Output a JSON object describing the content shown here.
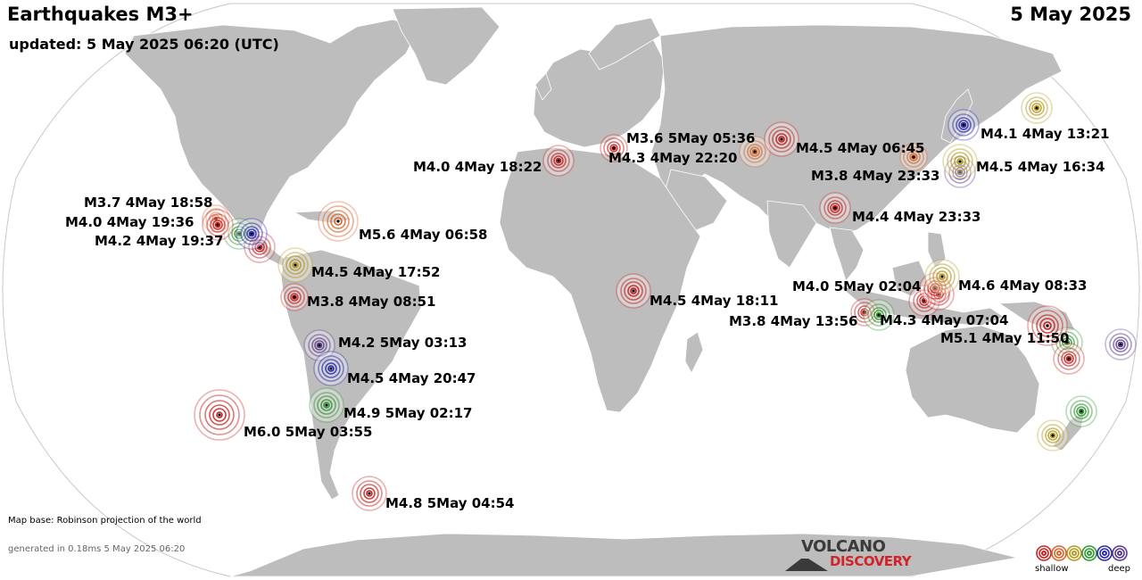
{
  "title": "Earthquakes M3+",
  "date": "5 May 2025",
  "updated": "updated:  5 May 2025 06:20 (UTC)",
  "map_base": "Map base: Robinson projection of the world",
  "generated": "generated in 0.18ms  5 May 2025 06:20",
  "logo": {
    "line1": "VOLCANO",
    "line2": "DISCOVERY"
  },
  "legend": {
    "shallow": "shallow",
    "deep": "deep",
    "colors": [
      "#cc2222",
      "#d9652a",
      "#b59a1e",
      "#2f9a2f",
      "#2a2ab4",
      "#5a3a8c"
    ]
  },
  "depth_colors": {
    "red": "#c81e1e",
    "orange": "#d9652a",
    "olive": "#b59a1e",
    "green": "#2f9a2f",
    "blue": "#2a2ab4",
    "purple": "#5a3a8c"
  },
  "earthquakes": [
    {
      "label": "M3.7  4May 18:58",
      "mag": 3.7,
      "color": "orange"
    },
    {
      "label": "M4.0  4May 19:36",
      "mag": 4.0,
      "color": "red"
    },
    {
      "label": "M4.2  4May 19:37",
      "mag": 4.2,
      "color": "blue"
    },
    {
      "label": "M5.6  4May 06:58",
      "mag": 5.6,
      "color": "orange"
    },
    {
      "label": "M4.5  4May 17:52",
      "mag": 4.5,
      "color": "olive"
    },
    {
      "label": "M3.8  4May 08:51",
      "mag": 3.8,
      "color": "red"
    },
    {
      "label": "M4.2  5May 03:13",
      "mag": 4.2,
      "color": "purple"
    },
    {
      "label": "M4.5  4May 20:47",
      "mag": 4.5,
      "color": "blue"
    },
    {
      "label": "M4.9  5May 02:17",
      "mag": 4.9,
      "color": "green"
    },
    {
      "label": "M6.0  5May 03:55",
      "mag": 6.0,
      "color": "red"
    },
    {
      "label": "M4.8  5May 04:54",
      "mag": 4.8,
      "color": "red"
    },
    {
      "label": "M4.0  4May 18:22",
      "mag": 4.0,
      "color": "red"
    },
    {
      "label": "M3.6  5May 05:36",
      "mag": 3.6,
      "color": "red"
    },
    {
      "label": "M4.3  4May 22:20",
      "mag": 4.3,
      "color": "orange"
    },
    {
      "label": "M4.5  4May 06:45",
      "mag": 4.5,
      "color": "red"
    },
    {
      "label": "M3.8  4May 23:33",
      "mag": 3.8,
      "color": "orange"
    },
    {
      "label": "M4.4  4May 23:33",
      "mag": 4.4,
      "color": "red"
    },
    {
      "label": "M4.1  4May 13:21",
      "mag": 4.1,
      "color": "blue"
    },
    {
      "label": "M4.5  4May 16:34",
      "mag": 4.5,
      "color": "olive"
    },
    {
      "label": "M4.5  4May 18:11",
      "mag": 4.5,
      "color": "red"
    },
    {
      "label": "M4.0  5May 02:04",
      "mag": 4.0,
      "color": "red"
    },
    {
      "label": "M4.6  4May 08:33",
      "mag": 4.6,
      "color": "olive"
    },
    {
      "label": "M3.8  4May 13:56",
      "mag": 3.8,
      "color": "red"
    },
    {
      "label": "M4.3  4May 07:04",
      "mag": 4.3,
      "color": "green"
    },
    {
      "label": "M5.1  4May 11:50",
      "mag": 5.1,
      "color": "red"
    }
  ],
  "unlabeled_earthquakes": [
    {
      "name": "japan-east",
      "mag": 4.2,
      "color": "olive"
    },
    {
      "name": "mexico-extra",
      "mag": 4.0,
      "color": "green"
    },
    {
      "name": "guatemala-extra",
      "mag": 4.0,
      "color": "red"
    },
    {
      "name": "taiwan-extra",
      "mag": 4.0,
      "color": "purple"
    },
    {
      "name": "sulawesi-extra",
      "mag": 4.0,
      "color": "red"
    },
    {
      "name": "molucca-extra",
      "mag": 4.0,
      "color": "red"
    },
    {
      "name": "png-extra",
      "mag": 4.0,
      "color": "green"
    },
    {
      "name": "solomon-extra",
      "mag": 4.0,
      "color": "red"
    },
    {
      "name": "fiji",
      "mag": 4.3,
      "color": "purple"
    },
    {
      "name": "kermadec",
      "mag": 4.3,
      "color": "green"
    },
    {
      "name": "new-zealand",
      "mag": 4.3,
      "color": "olive"
    }
  ]
}
